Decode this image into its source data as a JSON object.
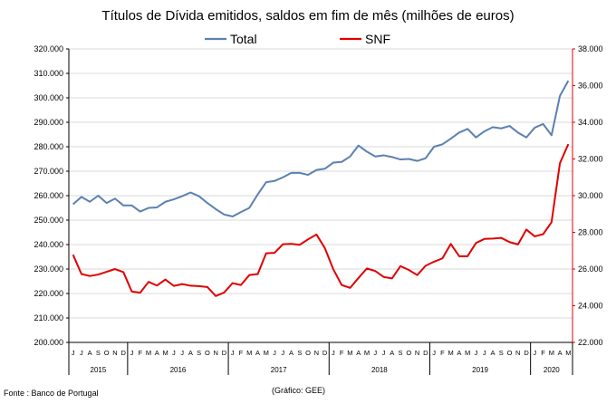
{
  "chart_data": {
    "type": "line",
    "title": "Títulos de Dívida emitidos, saldos em fim de mês  (milhões de euros)",
    "source": "Fonte : Banco de Portugal",
    "credit": "(Gráfico: GEE)",
    "legend_position": "top-center",
    "grid": "horizontal",
    "y_left": {
      "min": 200000,
      "max": 320000,
      "step": 10000,
      "tick_labels": [
        "200.000",
        "210.000",
        "220.000",
        "230.000",
        "240.000",
        "250.000",
        "260.000",
        "270.000",
        "280.000",
        "290.000",
        "300.000",
        "310.000",
        "320.000"
      ]
    },
    "y_right": {
      "min": 22000,
      "max": 38000,
      "step": 2000,
      "tick_labels": [
        "22.000",
        "24.000",
        "26.000",
        "28.000",
        "30.000",
        "32.000",
        "34.000",
        "36.000",
        "38.000"
      ]
    },
    "month_letters": [
      "J",
      "J",
      "A",
      "S",
      "O",
      "N",
      "D",
      "J",
      "F",
      "M",
      "A",
      "M",
      "J",
      "J",
      "A",
      "S",
      "O",
      "N",
      "D",
      "J",
      "F",
      "M",
      "A",
      "M",
      "J",
      "J",
      "A",
      "S",
      "O",
      "N",
      "D",
      "J",
      "F",
      "M",
      "A",
      "M",
      "J",
      "J",
      "A",
      "S",
      "O",
      "N",
      "D",
      "J",
      "F",
      "M",
      "A",
      "M",
      "J",
      "J",
      "A",
      "S",
      "O",
      "N",
      "D",
      "J",
      "F",
      "M",
      "A",
      "M"
    ],
    "years": [
      {
        "label": "2015",
        "months": 7
      },
      {
        "label": "2016",
        "months": 12
      },
      {
        "label": "2017",
        "months": 12
      },
      {
        "label": "2018",
        "months": 12
      },
      {
        "label": "2019",
        "months": 12
      },
      {
        "label": "2020",
        "months": 5
      }
    ],
    "series": [
      {
        "name": "Total",
        "axis": "left",
        "color": "#5b80b2",
        "values": [
          256500,
          259500,
          257500,
          260000,
          257000,
          258800,
          256000,
          256000,
          253500,
          255000,
          255200,
          257500,
          258500,
          259800,
          261300,
          259800,
          257000,
          254500,
          252300,
          251500,
          253300,
          255000,
          260500,
          265500,
          266000,
          267500,
          269300,
          269300,
          268500,
          270500,
          271000,
          273500,
          273800,
          276000,
          280500,
          278000,
          276000,
          276500,
          275800,
          274800,
          275000,
          274200,
          275300,
          280000,
          281000,
          283300,
          285800,
          287300,
          283800,
          286300,
          288000,
          287500,
          288500,
          285800,
          283800,
          287800,
          289300,
          284700,
          300800,
          307000
        ]
      },
      {
        "name": "SNF",
        "axis": "right",
        "color": "#e00000",
        "values": [
          26780,
          25730,
          25620,
          25700,
          25850,
          26000,
          25830,
          24770,
          24710,
          25300,
          25100,
          25430,
          25080,
          25180,
          25090,
          25070,
          25020,
          24530,
          24720,
          25230,
          25130,
          25670,
          25720,
          26860,
          26880,
          27350,
          27370,
          27320,
          27620,
          27880,
          27140,
          25990,
          25130,
          24970,
          25510,
          26030,
          25890,
          25570,
          25490,
          26160,
          25950,
          25670,
          26180,
          26400,
          26580,
          27370,
          26700,
          26700,
          27420,
          27640,
          27660,
          27700,
          27470,
          27340,
          28150,
          27780,
          27900,
          28550,
          31770,
          32810
        ]
      }
    ]
  }
}
